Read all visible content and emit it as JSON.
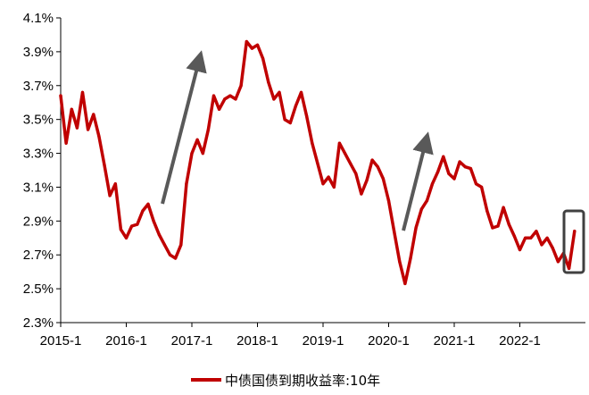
{
  "chart_data": {
    "type": "line",
    "title": "",
    "xlabel": "",
    "ylabel": "",
    "x_ticks": [
      "2015-1",
      "2016-1",
      "2017-1",
      "2018-1",
      "2019-1",
      "2020-1",
      "2021-1",
      "2022-1"
    ],
    "y_ticks": [
      "2.3%",
      "2.5%",
      "2.7%",
      "2.9%",
      "3.1%",
      "3.3%",
      "3.5%",
      "3.7%",
      "3.9%",
      "4.1%"
    ],
    "ylim": [
      2.3,
      4.1
    ],
    "x_range": [
      "2015-01",
      "2023-01"
    ],
    "legend": "bottom-center",
    "colors": {
      "line": "#c00000",
      "arrows": "#595959",
      "highlight_box": "#404040"
    },
    "series": [
      {
        "name": "中债国债到期收益率:10年",
        "x": [
          "2015-01",
          "2015-02",
          "2015-03",
          "2015-04",
          "2015-05",
          "2015-06",
          "2015-07",
          "2015-08",
          "2015-09",
          "2015-10",
          "2015-11",
          "2015-12",
          "2016-01",
          "2016-02",
          "2016-03",
          "2016-04",
          "2016-05",
          "2016-06",
          "2016-07",
          "2016-08",
          "2016-09",
          "2016-10",
          "2016-11",
          "2016-12",
          "2017-01",
          "2017-02",
          "2017-03",
          "2017-04",
          "2017-05",
          "2017-06",
          "2017-07",
          "2017-08",
          "2017-09",
          "2017-10",
          "2017-11",
          "2017-12",
          "2018-01",
          "2018-02",
          "2018-03",
          "2018-04",
          "2018-05",
          "2018-06",
          "2018-07",
          "2018-08",
          "2018-09",
          "2018-10",
          "2018-11",
          "2018-12",
          "2019-01",
          "2019-02",
          "2019-03",
          "2019-04",
          "2019-05",
          "2019-06",
          "2019-07",
          "2019-08",
          "2019-09",
          "2019-10",
          "2019-11",
          "2019-12",
          "2020-01",
          "2020-02",
          "2020-03",
          "2020-04",
          "2020-05",
          "2020-06",
          "2020-07",
          "2020-08",
          "2020-09",
          "2020-10",
          "2020-11",
          "2020-12",
          "2021-01",
          "2021-02",
          "2021-03",
          "2021-04",
          "2021-05",
          "2021-06",
          "2021-07",
          "2021-08",
          "2021-09",
          "2021-10",
          "2021-11",
          "2021-12",
          "2022-01",
          "2022-02",
          "2022-03",
          "2022-04",
          "2022-05",
          "2022-06",
          "2022-07",
          "2022-08",
          "2022-09",
          "2022-10",
          "2022-11"
        ],
        "values": [
          3.64,
          3.36,
          3.56,
          3.45,
          3.66,
          3.44,
          3.53,
          3.4,
          3.23,
          3.05,
          3.12,
          2.85,
          2.8,
          2.87,
          2.88,
          2.96,
          3.0,
          2.9,
          2.82,
          2.76,
          2.7,
          2.68,
          2.76,
          3.12,
          3.3,
          3.38,
          3.3,
          3.44,
          3.64,
          3.56,
          3.62,
          3.64,
          3.62,
          3.7,
          3.96,
          3.92,
          3.94,
          3.86,
          3.72,
          3.62,
          3.66,
          3.5,
          3.48,
          3.58,
          3.66,
          3.52,
          3.36,
          3.24,
          3.12,
          3.16,
          3.1,
          3.36,
          3.3,
          3.24,
          3.18,
          3.06,
          3.14,
          3.26,
          3.22,
          3.15,
          3.02,
          2.84,
          2.66,
          2.53,
          2.68,
          2.86,
          2.97,
          3.02,
          3.12,
          3.19,
          3.28,
          3.18,
          3.15,
          3.25,
          3.22,
          3.21,
          3.12,
          3.1,
          2.96,
          2.86,
          2.87,
          2.98,
          2.88,
          2.81,
          2.73,
          2.8,
          2.8,
          2.84,
          2.76,
          2.8,
          2.74,
          2.66,
          2.71,
          2.62,
          2.84
        ]
      }
    ]
  },
  "legend": {
    "label": "中债国债到期收益率:10年"
  }
}
